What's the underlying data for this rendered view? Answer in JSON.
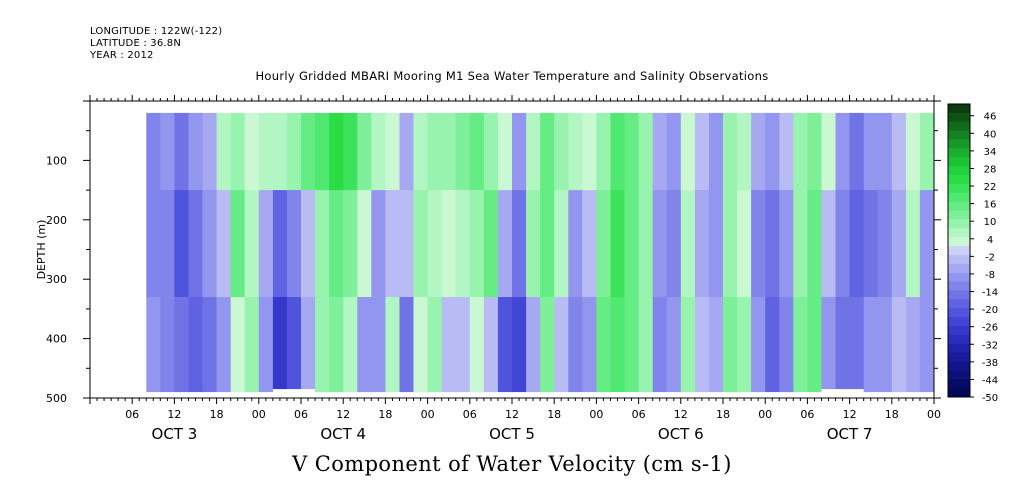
{
  "header": {
    "longitude": "LONGITUDE : 122W(-122)",
    "latitude": "LATITUDE : 36.8N",
    "year": "YEAR : 2012"
  },
  "chart_data": {
    "type": "heatmap",
    "title": "Hourly Gridded MBARI Mooring M1 Sea Water Temperature and Salinity Observations",
    "xlabel": "V Component of Water Velocity (cm s-1)",
    "ylabel": "DEPTH (m)",
    "y_axis": {
      "range": [
        0,
        500
      ],
      "inverted": true,
      "ticks": [
        100,
        200,
        300,
        400,
        500
      ]
    },
    "x_axis": {
      "range_hours": [
        0,
        120
      ],
      "hour_ticks": [
        {
          "h": 6,
          "label": "06"
        },
        {
          "h": 12,
          "label": "12"
        },
        {
          "h": 18,
          "label": "18"
        },
        {
          "h": 24,
          "label": "00"
        },
        {
          "h": 30,
          "label": "06"
        },
        {
          "h": 36,
          "label": "12"
        },
        {
          "h": 42,
          "label": "18"
        },
        {
          "h": 48,
          "label": "00"
        },
        {
          "h": 54,
          "label": "06"
        },
        {
          "h": 60,
          "label": "12"
        },
        {
          "h": 66,
          "label": "18"
        },
        {
          "h": 72,
          "label": "00"
        },
        {
          "h": 78,
          "label": "06"
        },
        {
          "h": 84,
          "label": "12"
        },
        {
          "h": 90,
          "label": "18"
        },
        {
          "h": 96,
          "label": "00"
        },
        {
          "h": 102,
          "label": "06"
        },
        {
          "h": 108,
          "label": "12"
        },
        {
          "h": 114,
          "label": "18"
        },
        {
          "h": 120,
          "label": "00"
        }
      ],
      "day_labels": [
        {
          "h": 12,
          "label": "OCT  3"
        },
        {
          "h": 36,
          "label": "OCT  4"
        },
        {
          "h": 60,
          "label": "OCT  5"
        },
        {
          "h": 84,
          "label": "OCT  6"
        },
        {
          "h": 108,
          "label": "OCT  7"
        }
      ]
    },
    "data_extent": {
      "start_hour": 8,
      "end_hour": 120,
      "top_depth": 20,
      "bottom_depth": 485
    },
    "colorbar": {
      "labels": [
        "46",
        "40",
        "34",
        "28",
        "22",
        "16",
        "10",
        "4",
        "-2",
        "-8",
        "-14",
        "-20",
        "-26",
        "-32",
        "-38",
        "-44",
        "-50"
      ],
      "min": -50,
      "max": 50,
      "levels": [
        50,
        46,
        43,
        40,
        37,
        34,
        31,
        28,
        25,
        22,
        19,
        16,
        13,
        10,
        7,
        4,
        1,
        -2,
        -5,
        -8,
        -11,
        -14,
        -17,
        -20,
        -23,
        -26,
        -29,
        -32,
        -35,
        -38,
        -41,
        -44,
        -47,
        -50
      ],
      "colors": [
        "#0c3d10",
        "#0f5416",
        "#126b1c",
        "#148222",
        "#179a28",
        "#1aaf2e",
        "#1ec235",
        "#23d23c",
        "#2bdc45",
        "#3be25a",
        "#4fe870",
        "#66ec85",
        "#7ef09a",
        "#98f3af",
        "#b2f6c3",
        "#c9f8d2",
        "#cdd0f7",
        "#b9bcf4",
        "#a6a9f1",
        "#9396ee",
        "#8184ea",
        "#6f73e6",
        "#5f63e2",
        "#5054dd",
        "#4246d6",
        "#3539cb",
        "#2a2ebd",
        "#2024ad",
        "#181c9b",
        "#111589",
        "#0c1077",
        "#080b66",
        "#050856"
      ]
    },
    "columns": [
      {
        "h": 8,
        "profile": [
          [
            "top",
            -11
          ],
          [
            "mid",
            -12
          ],
          [
            "bot",
            -10
          ]
        ]
      },
      {
        "h": 10,
        "profile": [
          [
            "top",
            -8
          ],
          [
            "mid",
            -13
          ],
          [
            "bot",
            -12
          ]
        ]
      },
      {
        "h": 12,
        "profile": [
          [
            "top",
            -14
          ],
          [
            "mid",
            -20
          ],
          [
            "bot",
            -16
          ]
        ]
      },
      {
        "h": 14,
        "profile": [
          [
            "top",
            -10
          ],
          [
            "mid",
            -16
          ],
          [
            "bot",
            -18
          ]
        ]
      },
      {
        "h": 16,
        "profile": [
          [
            "top",
            -5
          ],
          [
            "mid",
            -10
          ],
          [
            "bot",
            -14
          ]
        ]
      },
      {
        "h": 18,
        "profile": [
          [
            "top",
            6
          ],
          [
            "mid",
            -2
          ],
          [
            "bot",
            -8
          ]
        ]
      },
      {
        "h": 20,
        "profile": [
          [
            "top",
            8
          ],
          [
            "mid",
            14
          ],
          [
            "bot",
            4
          ]
        ]
      },
      {
        "h": 22,
        "profile": [
          [
            "top",
            4
          ],
          [
            "mid",
            6
          ],
          [
            "bot",
            8
          ]
        ]
      },
      {
        "h": 24,
        "profile": [
          [
            "top",
            5
          ],
          [
            "mid",
            -6
          ],
          [
            "bot",
            -10
          ]
        ]
      },
      {
        "h": 26,
        "profile": [
          [
            "top",
            6
          ],
          [
            "mid",
            -18
          ],
          [
            "bot",
            -26
          ]
        ]
      },
      {
        "h": 28,
        "profile": [
          [
            "top",
            10
          ],
          [
            "mid",
            -12
          ],
          [
            "bot",
            -22
          ]
        ]
      },
      {
        "h": 30,
        "profile": [
          [
            "top",
            14
          ],
          [
            "mid",
            -4
          ],
          [
            "bot",
            -6
          ]
        ]
      },
      {
        "h": 32,
        "profile": [
          [
            "top",
            18
          ],
          [
            "mid",
            8
          ],
          [
            "bot",
            10
          ]
        ]
      },
      {
        "h": 34,
        "profile": [
          [
            "top",
            24
          ],
          [
            "mid",
            16
          ],
          [
            "bot",
            12
          ]
        ]
      },
      {
        "h": 36,
        "profile": [
          [
            "top",
            20
          ],
          [
            "mid",
            12
          ],
          [
            "bot",
            6
          ]
        ]
      },
      {
        "h": 38,
        "profile": [
          [
            "top",
            12
          ],
          [
            "mid",
            2
          ],
          [
            "bot",
            -8
          ]
        ]
      },
      {
        "h": 40,
        "profile": [
          [
            "top",
            6
          ],
          [
            "mid",
            -8
          ],
          [
            "bot",
            -10
          ]
        ]
      },
      {
        "h": 42,
        "profile": [
          [
            "top",
            4
          ],
          [
            "mid",
            -4
          ],
          [
            "bot",
            6
          ]
        ]
      },
      {
        "h": 44,
        "profile": [
          [
            "top",
            -6
          ],
          [
            "mid",
            -2
          ],
          [
            "bot",
            -14
          ]
        ]
      },
      {
        "h": 46,
        "profile": [
          [
            "top",
            6
          ],
          [
            "mid",
            8
          ],
          [
            "bot",
            2
          ]
        ]
      },
      {
        "h": 48,
        "profile": [
          [
            "top",
            8
          ],
          [
            "mid",
            6
          ],
          [
            "bot",
            8
          ]
        ]
      },
      {
        "h": 50,
        "profile": [
          [
            "top",
            10
          ],
          [
            "mid",
            4
          ],
          [
            "bot",
            -2
          ]
        ]
      },
      {
        "h": 52,
        "profile": [
          [
            "top",
            12
          ],
          [
            "mid",
            6
          ],
          [
            "bot",
            -4
          ]
        ]
      },
      {
        "h": 54,
        "profile": [
          [
            "top",
            14
          ],
          [
            "mid",
            10
          ],
          [
            "bot",
            4
          ]
        ]
      },
      {
        "h": 56,
        "profile": [
          [
            "top",
            10
          ],
          [
            "mid",
            14
          ],
          [
            "bot",
            -2
          ]
        ]
      },
      {
        "h": 58,
        "profile": [
          [
            "top",
            4
          ],
          [
            "mid",
            -6
          ],
          [
            "bot",
            -20
          ]
        ]
      },
      {
        "h": 60,
        "profile": [
          [
            "top",
            -10
          ],
          [
            "mid",
            -14
          ],
          [
            "bot",
            -24
          ]
        ]
      },
      {
        "h": 62,
        "profile": [
          [
            "top",
            6
          ],
          [
            "mid",
            8
          ],
          [
            "bot",
            -6
          ]
        ]
      },
      {
        "h": 64,
        "profile": [
          [
            "top",
            14
          ],
          [
            "mid",
            16
          ],
          [
            "bot",
            12
          ]
        ]
      },
      {
        "h": 66,
        "profile": [
          [
            "top",
            10
          ],
          [
            "mid",
            6
          ],
          [
            "bot",
            -4
          ]
        ]
      },
      {
        "h": 68,
        "profile": [
          [
            "top",
            6
          ],
          [
            "mid",
            -8
          ],
          [
            "bot",
            -12
          ]
        ]
      },
      {
        "h": 70,
        "profile": [
          [
            "top",
            4
          ],
          [
            "mid",
            -4
          ],
          [
            "bot",
            -8
          ]
        ]
      },
      {
        "h": 72,
        "profile": [
          [
            "top",
            10
          ],
          [
            "mid",
            12
          ],
          [
            "bot",
            14
          ]
        ]
      },
      {
        "h": 74,
        "profile": [
          [
            "top",
            18
          ],
          [
            "mid",
            22
          ],
          [
            "bot",
            18
          ]
        ]
      },
      {
        "h": 76,
        "profile": [
          [
            "top",
            16
          ],
          [
            "mid",
            16
          ],
          [
            "bot",
            14
          ]
        ]
      },
      {
        "h": 78,
        "profile": [
          [
            "top",
            8
          ],
          [
            "mid",
            10
          ],
          [
            "bot",
            8
          ]
        ]
      },
      {
        "h": 80,
        "profile": [
          [
            "top",
            -6
          ],
          [
            "mid",
            -10
          ],
          [
            "bot",
            -12
          ]
        ]
      },
      {
        "h": 82,
        "profile": [
          [
            "top",
            -8
          ],
          [
            "mid",
            -12
          ],
          [
            "bot",
            -8
          ]
        ]
      },
      {
        "h": 84,
        "profile": [
          [
            "top",
            4
          ],
          [
            "mid",
            6
          ],
          [
            "bot",
            10
          ]
        ]
      },
      {
        "h": 86,
        "profile": [
          [
            "top",
            -4
          ],
          [
            "mid",
            -6
          ],
          [
            "bot",
            -4
          ]
        ]
      },
      {
        "h": 88,
        "profile": [
          [
            "top",
            -8
          ],
          [
            "mid",
            -10
          ],
          [
            "bot",
            -6
          ]
        ]
      },
      {
        "h": 90,
        "profile": [
          [
            "top",
            8
          ],
          [
            "mid",
            10
          ],
          [
            "bot",
            12
          ]
        ]
      },
      {
        "h": 92,
        "profile": [
          [
            "top",
            6
          ],
          [
            "mid",
            4
          ],
          [
            "bot",
            8
          ]
        ]
      },
      {
        "h": 94,
        "profile": [
          [
            "top",
            -6
          ],
          [
            "mid",
            -12
          ],
          [
            "bot",
            -10
          ]
        ]
      },
      {
        "h": 96,
        "profile": [
          [
            "top",
            -10
          ],
          [
            "mid",
            -16
          ],
          [
            "bot",
            -18
          ]
        ]
      },
      {
        "h": 98,
        "profile": [
          [
            "top",
            -4
          ],
          [
            "mid",
            -8
          ],
          [
            "bot",
            -12
          ]
        ]
      },
      {
        "h": 100,
        "profile": [
          [
            "top",
            8
          ],
          [
            "mid",
            10
          ],
          [
            "bot",
            12
          ]
        ]
      },
      {
        "h": 102,
        "profile": [
          [
            "top",
            12
          ],
          [
            "mid",
            14
          ],
          [
            "bot",
            16
          ]
        ]
      },
      {
        "h": 104,
        "profile": [
          [
            "top",
            4
          ],
          [
            "mid",
            -4
          ],
          [
            "bot",
            -8
          ]
        ]
      },
      {
        "h": 106,
        "profile": [
          [
            "top",
            -8
          ],
          [
            "mid",
            -12
          ],
          [
            "bot",
            -16
          ]
        ]
      },
      {
        "h": 108,
        "profile": [
          [
            "top",
            -14
          ],
          [
            "mid",
            -18
          ],
          [
            "bot",
            -14
          ]
        ]
      },
      {
        "h": 110,
        "profile": [
          [
            "top",
            -10
          ],
          [
            "mid",
            -14
          ],
          [
            "bot",
            -10
          ]
        ]
      },
      {
        "h": 112,
        "profile": [
          [
            "top",
            -8
          ],
          [
            "mid",
            -12
          ],
          [
            "bot",
            -8
          ]
        ]
      },
      {
        "h": 114,
        "profile": [
          [
            "top",
            -4
          ],
          [
            "mid",
            -6
          ],
          [
            "bot",
            -4
          ]
        ]
      },
      {
        "h": 116,
        "profile": [
          [
            "top",
            4
          ],
          [
            "mid",
            6
          ],
          [
            "bot",
            -6
          ]
        ]
      },
      {
        "h": 118,
        "profile": [
          [
            "top",
            10
          ],
          [
            "mid",
            -8
          ],
          [
            "bot",
            -10
          ]
        ]
      },
      {
        "h": 120,
        "profile": [
          [
            "top",
            -4
          ],
          [
            "mid",
            -6
          ],
          [
            "bot",
            -8
          ]
        ]
      }
    ],
    "missing_segments": [
      {
        "h0": 26,
        "h1": 32,
        "depth0": 485,
        "depth1": 500
      },
      {
        "h0": 104,
        "h1": 110,
        "depth0": 485,
        "depth1": 500
      }
    ]
  }
}
